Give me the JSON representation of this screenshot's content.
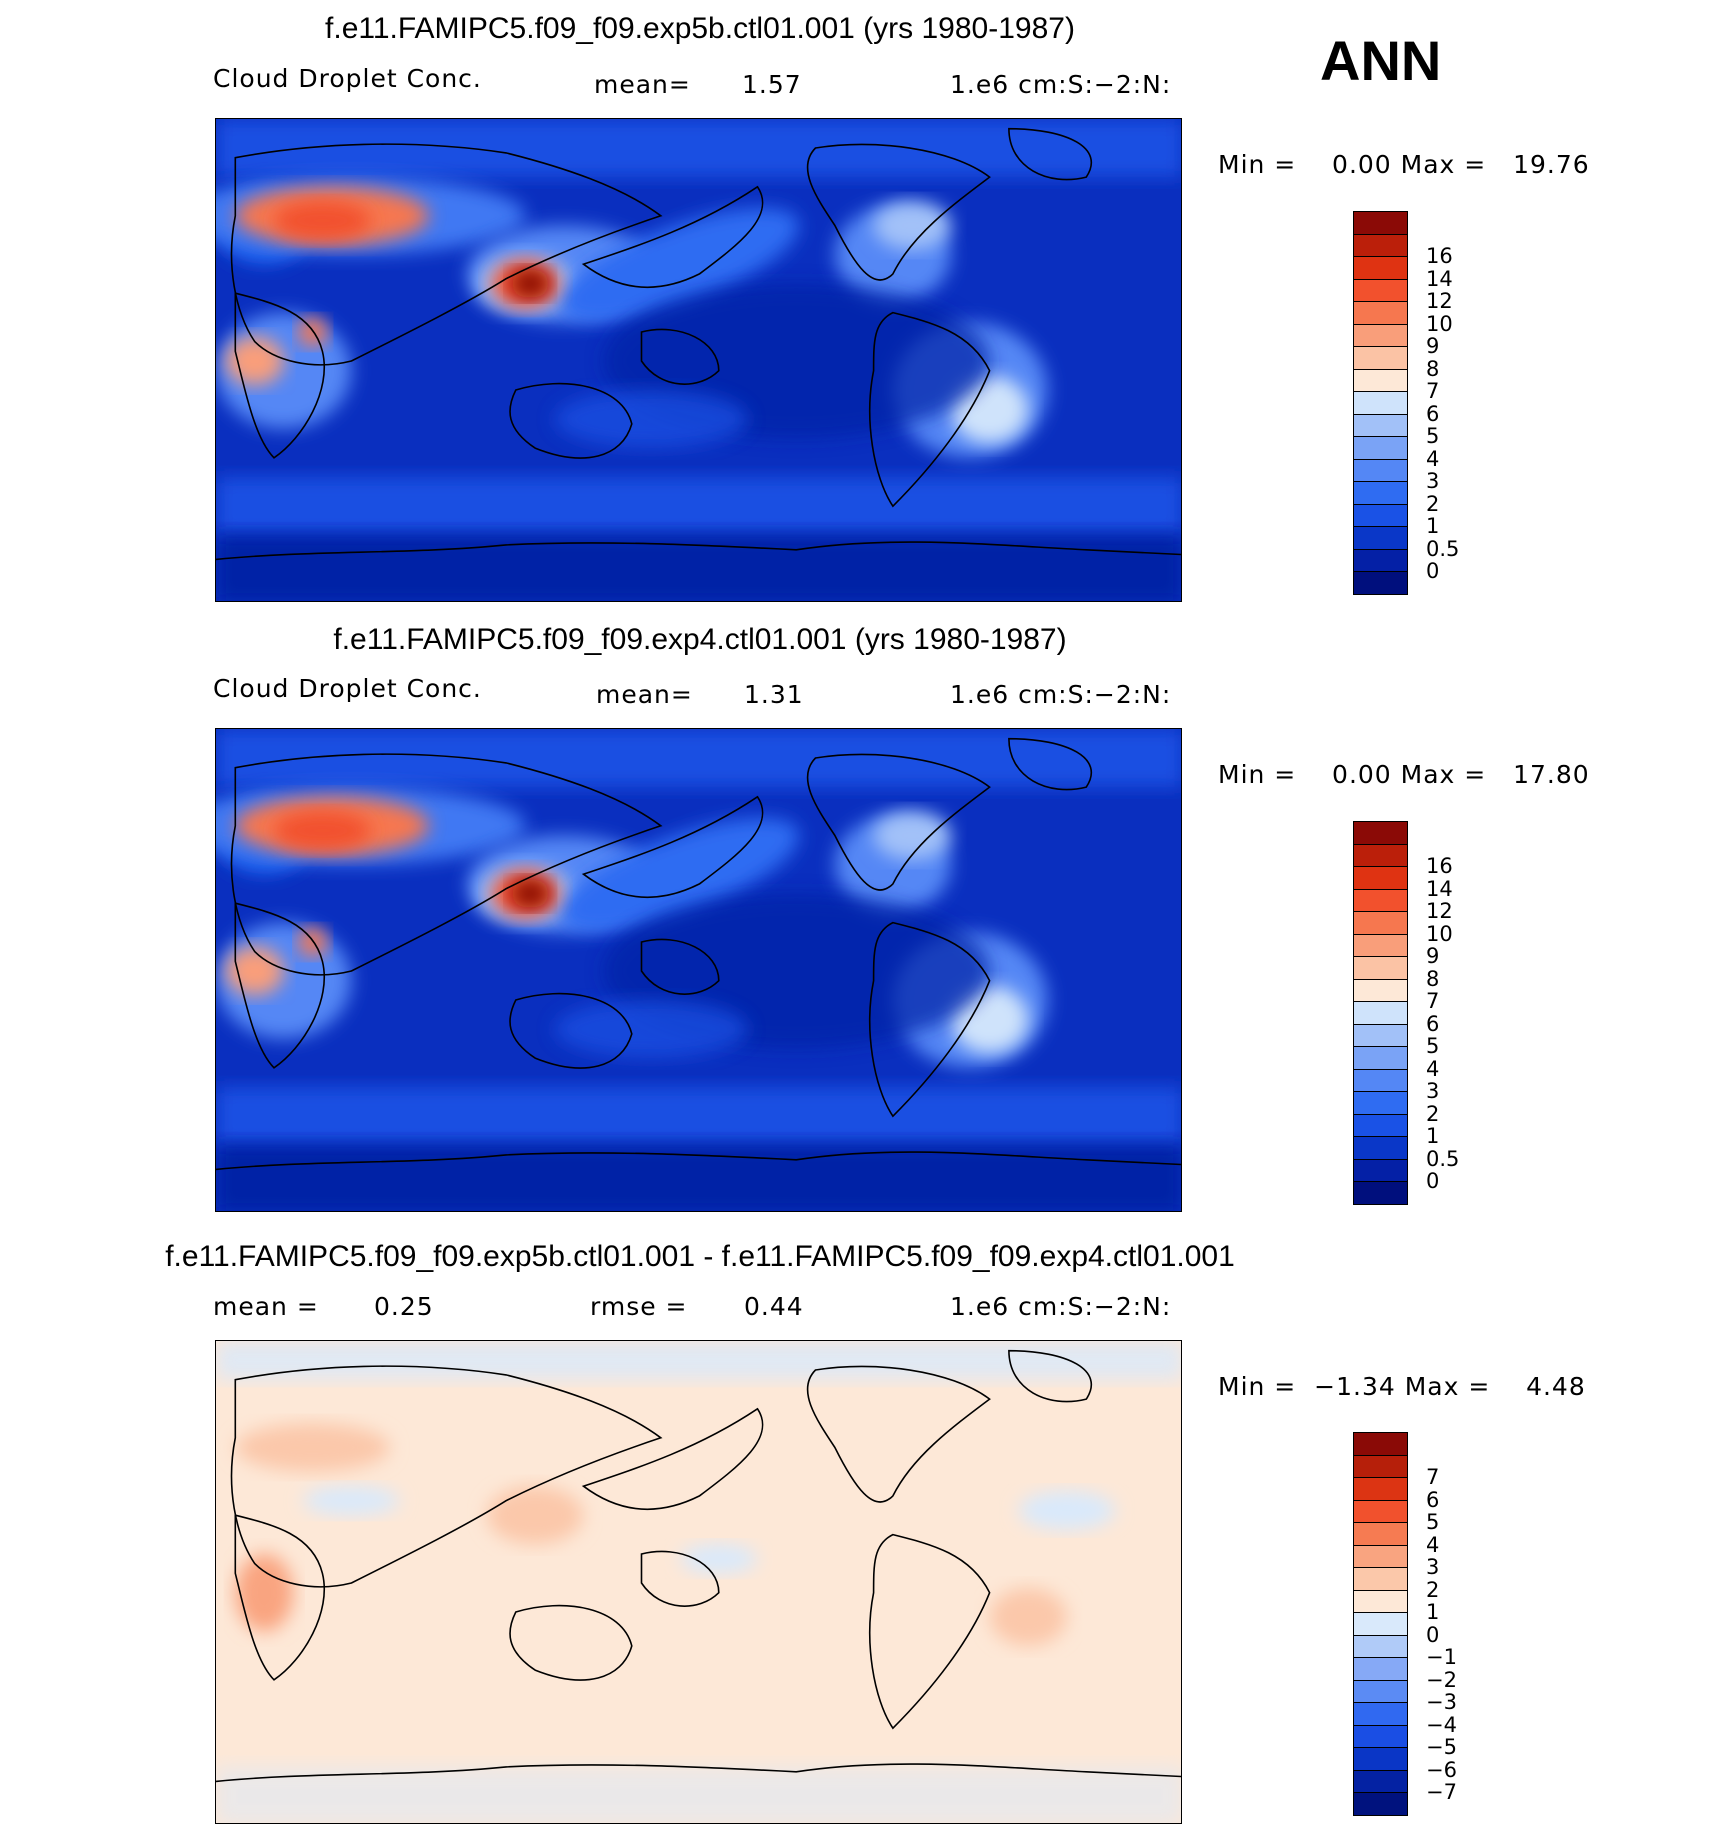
{
  "season": "ANN",
  "panels": [
    {
      "title": "f.e11.FAMIPC5.f09_f09.exp5b.ctl01.001 (yrs 1980-1987)",
      "sub_left": "Cloud Droplet Conc.",
      "sub_mid_label": "mean=",
      "sub_mid_value": "1.57",
      "sub_right": "1.e6 cm:S:−2:N:",
      "minmax": "Min =    0.00 Max =   19.76",
      "field": "base"
    },
    {
      "title": "f.e11.FAMIPC5.f09_f09.exp4.ctl01.001 (yrs 1980-1987)",
      "sub_left": "Cloud Droplet Conc.",
      "sub_mid_label": "mean=",
      "sub_mid_value": "1.31",
      "sub_right": "1.e6 cm:S:−2:N:",
      "minmax": "Min =    0.00 Max =   17.80",
      "field": "base"
    },
    {
      "title": "f.e11.FAMIPC5.f09_f09.exp5b.ctl01.001 - f.e11.FAMIPC5.f09_f09.exp4.ctl01.001",
      "sub_left_label": "mean =",
      "sub_left_value": "0.25",
      "sub_mid_label": "rmse =",
      "sub_mid_value": "0.44",
      "sub_right": "1.e6 cm:S:−2:N:",
      "minmax": "Min =  −1.34 Max =    4.48",
      "field": "diff"
    }
  ],
  "colorbars": {
    "abs": {
      "colors": [
        "#000f7d",
        "#0420a6",
        "#0a37c8",
        "#1a52e6",
        "#2f6cf2",
        "#5487f5",
        "#7aa3f6",
        "#a2c1f8",
        "#cfe3fb",
        "#fde8d7",
        "#fbc3a5",
        "#f99e7a",
        "#f6774f",
        "#f2512d",
        "#df3312",
        "#bb1f0a",
        "#8b0a06"
      ],
      "labels": [
        "0",
        "0.5",
        "1",
        "2",
        "3",
        "4",
        "5",
        "6",
        "7",
        "8",
        "9",
        "10",
        "12",
        "14",
        "16"
      ]
    },
    "diff": {
      "colors": [
        "#00127e",
        "#0422a3",
        "#0a36c6",
        "#1a4ee4",
        "#3069f1",
        "#5b8bf4",
        "#86a9f6",
        "#b0cbf8",
        "#d9e9fb",
        "#fde8d7",
        "#fbc8aa",
        "#f9a480",
        "#f67b52",
        "#f1512d",
        "#dc3413",
        "#b61f0a",
        "#8a0a06"
      ],
      "labels": [
        "−7",
        "−6",
        "−5",
        "−4",
        "−3",
        "−2",
        "−1",
        "0",
        "1",
        "2",
        "3",
        "4",
        "5",
        "6",
        "7"
      ]
    }
  }
}
